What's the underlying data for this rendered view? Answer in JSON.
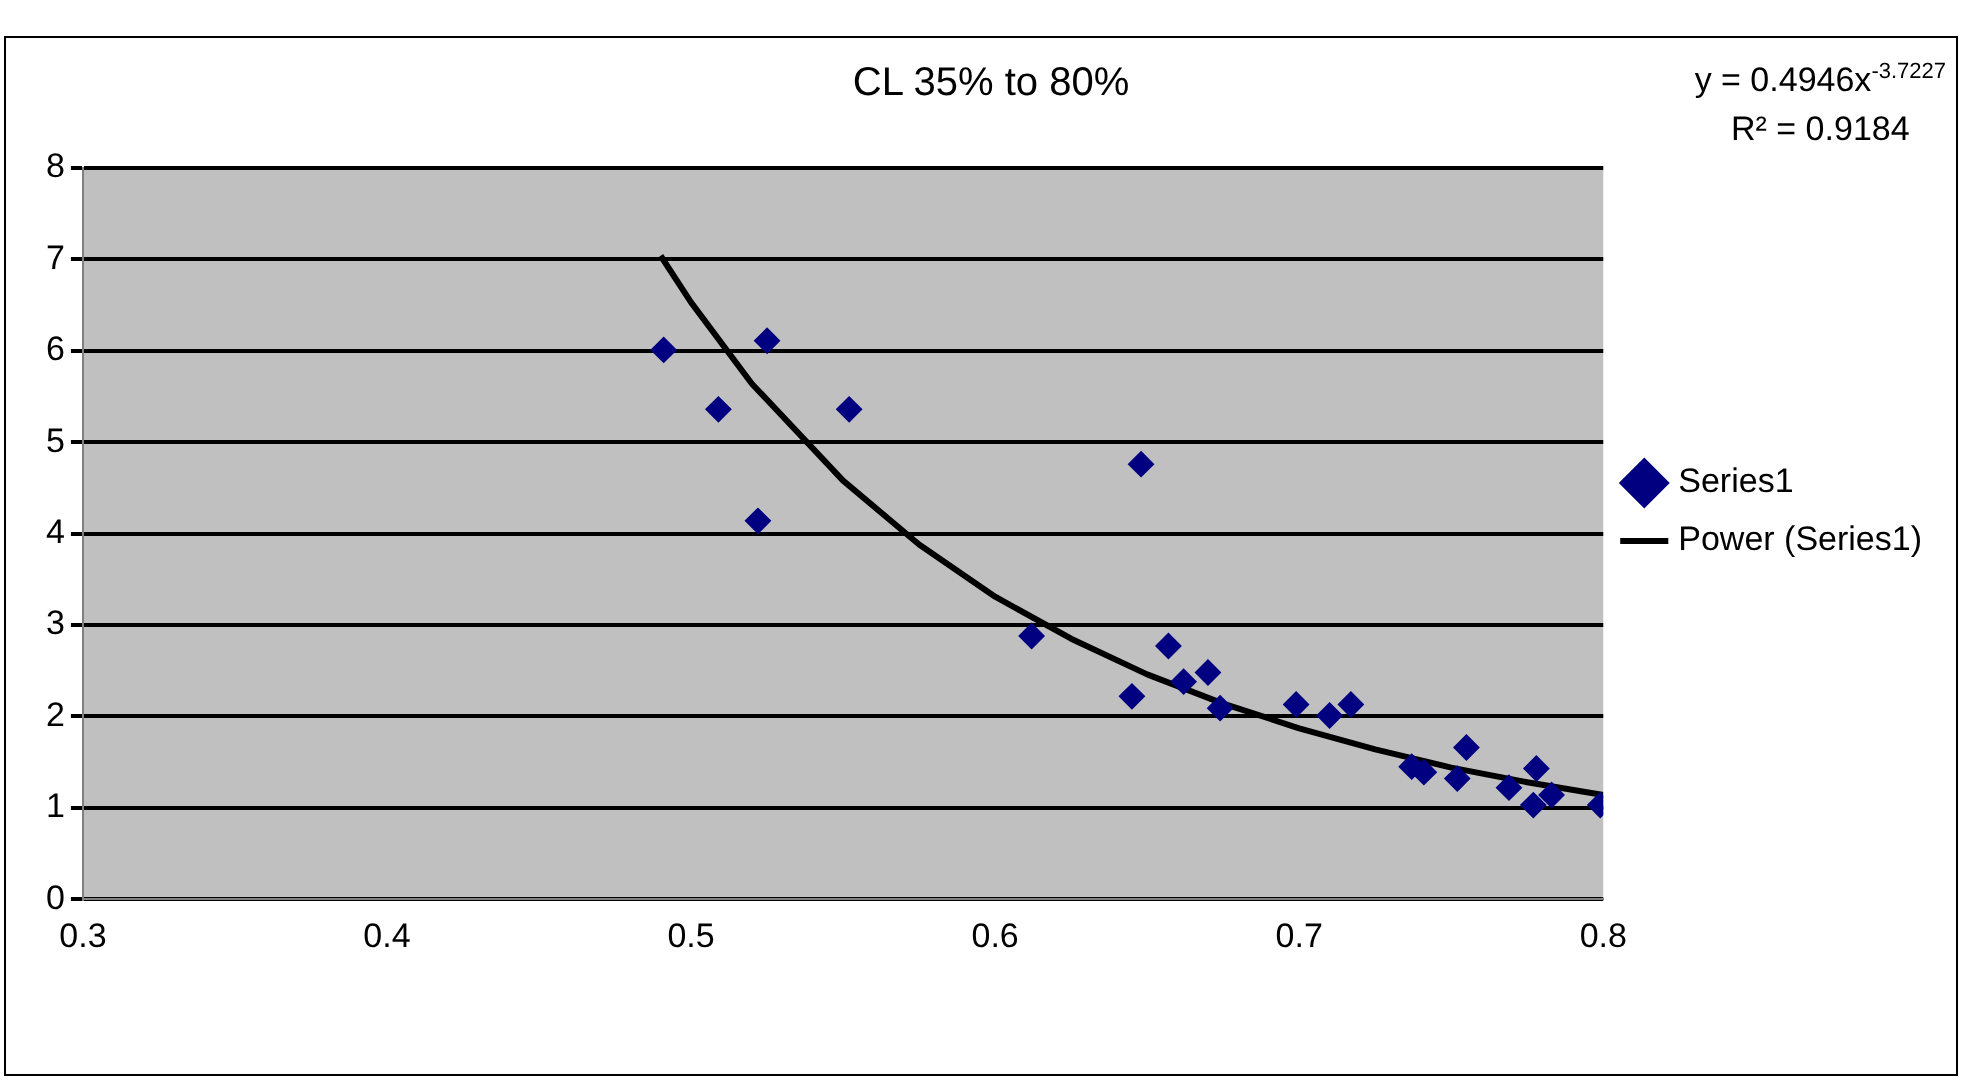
{
  "chart_data": {
    "type": "scatter",
    "title": "CL 35% to 80%",
    "xlim": [
      0.3,
      0.8
    ],
    "xticks": [
      0.3,
      0.4,
      0.5,
      0.6,
      0.7,
      0.8
    ],
    "ylim": [
      0,
      8
    ],
    "yticks": [
      0,
      1,
      2,
      3,
      4,
      5,
      6,
      7,
      8
    ],
    "grid": "y",
    "legend": "right",
    "marker": "diamond",
    "annotations": [
      "y = 0.4946x$^{-3.7227}$",
      "R² = 0.9184"
    ],
    "series": [
      {
        "name": "Series1",
        "color": "#000080",
        "x": [
          0.491,
          0.525,
          0.509,
          0.552,
          0.522,
          0.648,
          0.612,
          0.657,
          0.645,
          0.662,
          0.67,
          0.674,
          0.699,
          0.71,
          0.717,
          0.737,
          0.741,
          0.752,
          0.755,
          0.769,
          0.778,
          0.777,
          0.783,
          0.799
        ],
        "values": [
          6.01,
          6.11,
          5.36,
          5.36,
          4.14,
          4.76,
          2.88,
          2.77,
          2.22,
          2.38,
          2.48,
          2.09,
          2.13,
          2.01,
          2.13,
          1.45,
          1.39,
          1.32,
          1.66,
          1.22,
          1.43,
          1.03,
          1.14,
          1.03
        ]
      },
      {
        "name": "Power (Series1)",
        "type": "line",
        "marker": "none",
        "color": "#000000",
        "x": [
          0.49,
          0.5,
          0.52,
          0.55,
          0.575,
          0.6,
          0.625,
          0.65,
          0.675,
          0.7,
          0.725,
          0.75,
          0.775,
          0.8
        ],
        "values": [
          7.04,
          6.53,
          5.64,
          4.58,
          3.88,
          3.31,
          2.85,
          2.46,
          2.14,
          1.87,
          1.64,
          1.44,
          1.28,
          1.14
        ]
      }
    ]
  }
}
